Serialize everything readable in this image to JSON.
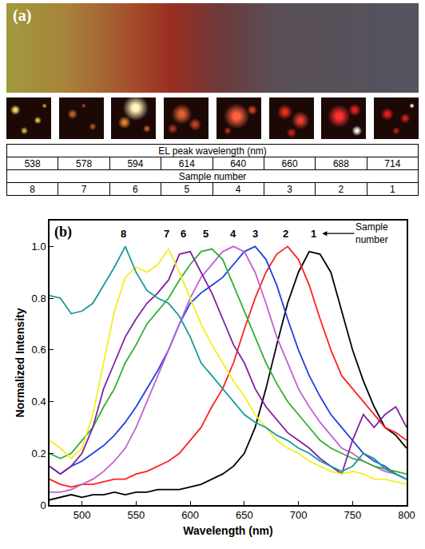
{
  "panel_a": {
    "label": "(a)",
    "table": {
      "header_1": "EL peak wavelength (nm)",
      "peak_wavelengths": [
        538,
        578,
        594,
        614,
        640,
        660,
        688,
        714
      ],
      "header_2": "Sample number",
      "sample_numbers": [
        8,
        7,
        6,
        5,
        4,
        3,
        2,
        1
      ]
    }
  },
  "chart_data": {
    "type": "line",
    "panel_label": "(b)",
    "x_label": "Wavelength (nm)",
    "y_label": "Normalized Intensity",
    "x": [
      470,
      480,
      490,
      500,
      510,
      520,
      530,
      540,
      550,
      560,
      570,
      580,
      590,
      600,
      610,
      620,
      630,
      640,
      650,
      660,
      670,
      680,
      690,
      700,
      710,
      720,
      730,
      740,
      750,
      760,
      770,
      780,
      790,
      800
    ],
    "xlim": [
      470,
      800
    ],
    "xticks": [
      500,
      550,
      600,
      650,
      700,
      750,
      800
    ],
    "ylim": [
      0,
      1.1
    ],
    "yticks": [
      0,
      0.2,
      0.4,
      0.6,
      0.8,
      {
        "value": 1,
        "label": "1.0"
      }
    ],
    "grid": false,
    "series": [
      {
        "name": "1",
        "color": "#000000",
        "values": [
          0.02,
          0.03,
          0.04,
          0.03,
          0.04,
          0.04,
          0.05,
          0.04,
          0.05,
          0.05,
          0.06,
          0.06,
          0.06,
          0.07,
          0.08,
          0.1,
          0.12,
          0.15,
          0.2,
          0.3,
          0.45,
          0.62,
          0.78,
          0.9,
          0.98,
          0.97,
          0.9,
          0.75,
          0.6,
          0.48,
          0.38,
          0.3,
          0.27,
          0.22
        ]
      },
      {
        "name": "2",
        "color": "#ff2020",
        "values": [
          0.1,
          0.08,
          0.07,
          0.08,
          0.08,
          0.09,
          0.1,
          0.1,
          0.12,
          0.13,
          0.15,
          0.17,
          0.2,
          0.25,
          0.3,
          0.38,
          0.45,
          0.55,
          0.68,
          0.8,
          0.9,
          0.97,
          1.0,
          0.95,
          0.85,
          0.72,
          0.6,
          0.5,
          0.45,
          0.4,
          0.35,
          0.3,
          0.28,
          0.25
        ]
      },
      {
        "name": "3",
        "color": "#2040e0",
        "values": [
          0.15,
          0.12,
          0.15,
          0.17,
          0.2,
          0.23,
          0.27,
          0.32,
          0.38,
          0.45,
          0.52,
          0.6,
          0.7,
          0.78,
          0.82,
          0.85,
          0.88,
          0.93,
          0.98,
          1.0,
          0.95,
          0.85,
          0.72,
          0.6,
          0.5,
          0.42,
          0.35,
          0.3,
          0.25,
          0.2,
          0.17,
          0.15,
          0.12,
          0.1
        ]
      },
      {
        "name": "4",
        "color": "#c060d0",
        "values": [
          0.05,
          0.05,
          0.06,
          0.08,
          0.1,
          0.13,
          0.17,
          0.22,
          0.3,
          0.4,
          0.5,
          0.6,
          0.7,
          0.8,
          0.88,
          0.93,
          0.98,
          1.0,
          0.98,
          0.9,
          0.78,
          0.65,
          0.55,
          0.45,
          0.38,
          0.32,
          0.27,
          0.22,
          0.2,
          0.17,
          0.15,
          0.13,
          0.12,
          0.1
        ]
      },
      {
        "name": "5",
        "color": "#30b030",
        "values": [
          0.2,
          0.18,
          0.2,
          0.25,
          0.3,
          0.38,
          0.45,
          0.55,
          0.62,
          0.7,
          0.75,
          0.8,
          0.87,
          0.93,
          0.98,
          0.99,
          0.95,
          0.85,
          0.75,
          0.65,
          0.55,
          0.47,
          0.4,
          0.35,
          0.3,
          0.25,
          0.22,
          0.2,
          0.18,
          0.17,
          0.15,
          0.14,
          0.13,
          0.12
        ]
      },
      {
        "name": "6",
        "color": "#8020a0",
        "values": [
          0.15,
          0.12,
          0.15,
          0.2,
          0.3,
          0.45,
          0.55,
          0.65,
          0.72,
          0.78,
          0.82,
          0.87,
          0.97,
          0.98,
          0.9,
          0.82,
          0.72,
          0.62,
          0.55,
          0.45,
          0.38,
          0.33,
          0.28,
          0.25,
          0.22,
          0.18,
          0.15,
          0.12,
          0.25,
          0.35,
          0.3,
          0.35,
          0.38,
          0.3
        ]
      },
      {
        "name": "7",
        "color": "#f0f020",
        "values": [
          0.25,
          0.22,
          0.18,
          0.22,
          0.35,
          0.55,
          0.75,
          0.88,
          0.92,
          0.9,
          0.93,
          0.99,
          0.9,
          0.8,
          0.7,
          0.62,
          0.55,
          0.48,
          0.42,
          0.35,
          0.3,
          0.25,
          0.22,
          0.2,
          0.17,
          0.15,
          0.13,
          0.12,
          0.13,
          0.12,
          0.1,
          0.1,
          0.09,
          0.08
        ]
      },
      {
        "name": "8",
        "color": "#1a9a9a",
        "values": [
          0.81,
          0.8,
          0.74,
          0.75,
          0.78,
          0.85,
          0.92,
          1.0,
          0.9,
          0.83,
          0.8,
          0.78,
          0.73,
          0.65,
          0.55,
          0.5,
          0.45,
          0.4,
          0.35,
          0.32,
          0.3,
          0.27,
          0.25,
          0.22,
          0.2,
          0.17,
          0.15,
          0.13,
          0.15,
          0.2,
          0.18,
          0.14,
          0.12,
          0.1
        ]
      }
    ],
    "annotations": [
      {
        "text": "8",
        "x": 538,
        "y": 1.05
      },
      {
        "text": "7",
        "x": 578,
        "y": 1.05
      },
      {
        "text": "6",
        "x": 594,
        "y": 1.05
      },
      {
        "text": "5",
        "x": 614,
        "y": 1.05
      },
      {
        "text": "4",
        "x": 640,
        "y": 1.05
      },
      {
        "text": "3",
        "x": 660,
        "y": 1.05
      },
      {
        "text": "2",
        "x": 688,
        "y": 1.05
      },
      {
        "text": "1",
        "x": 714,
        "y": 1.05
      },
      {
        "text": "Sample number",
        "x": 722,
        "y": 1.05,
        "arrow": true
      }
    ]
  }
}
